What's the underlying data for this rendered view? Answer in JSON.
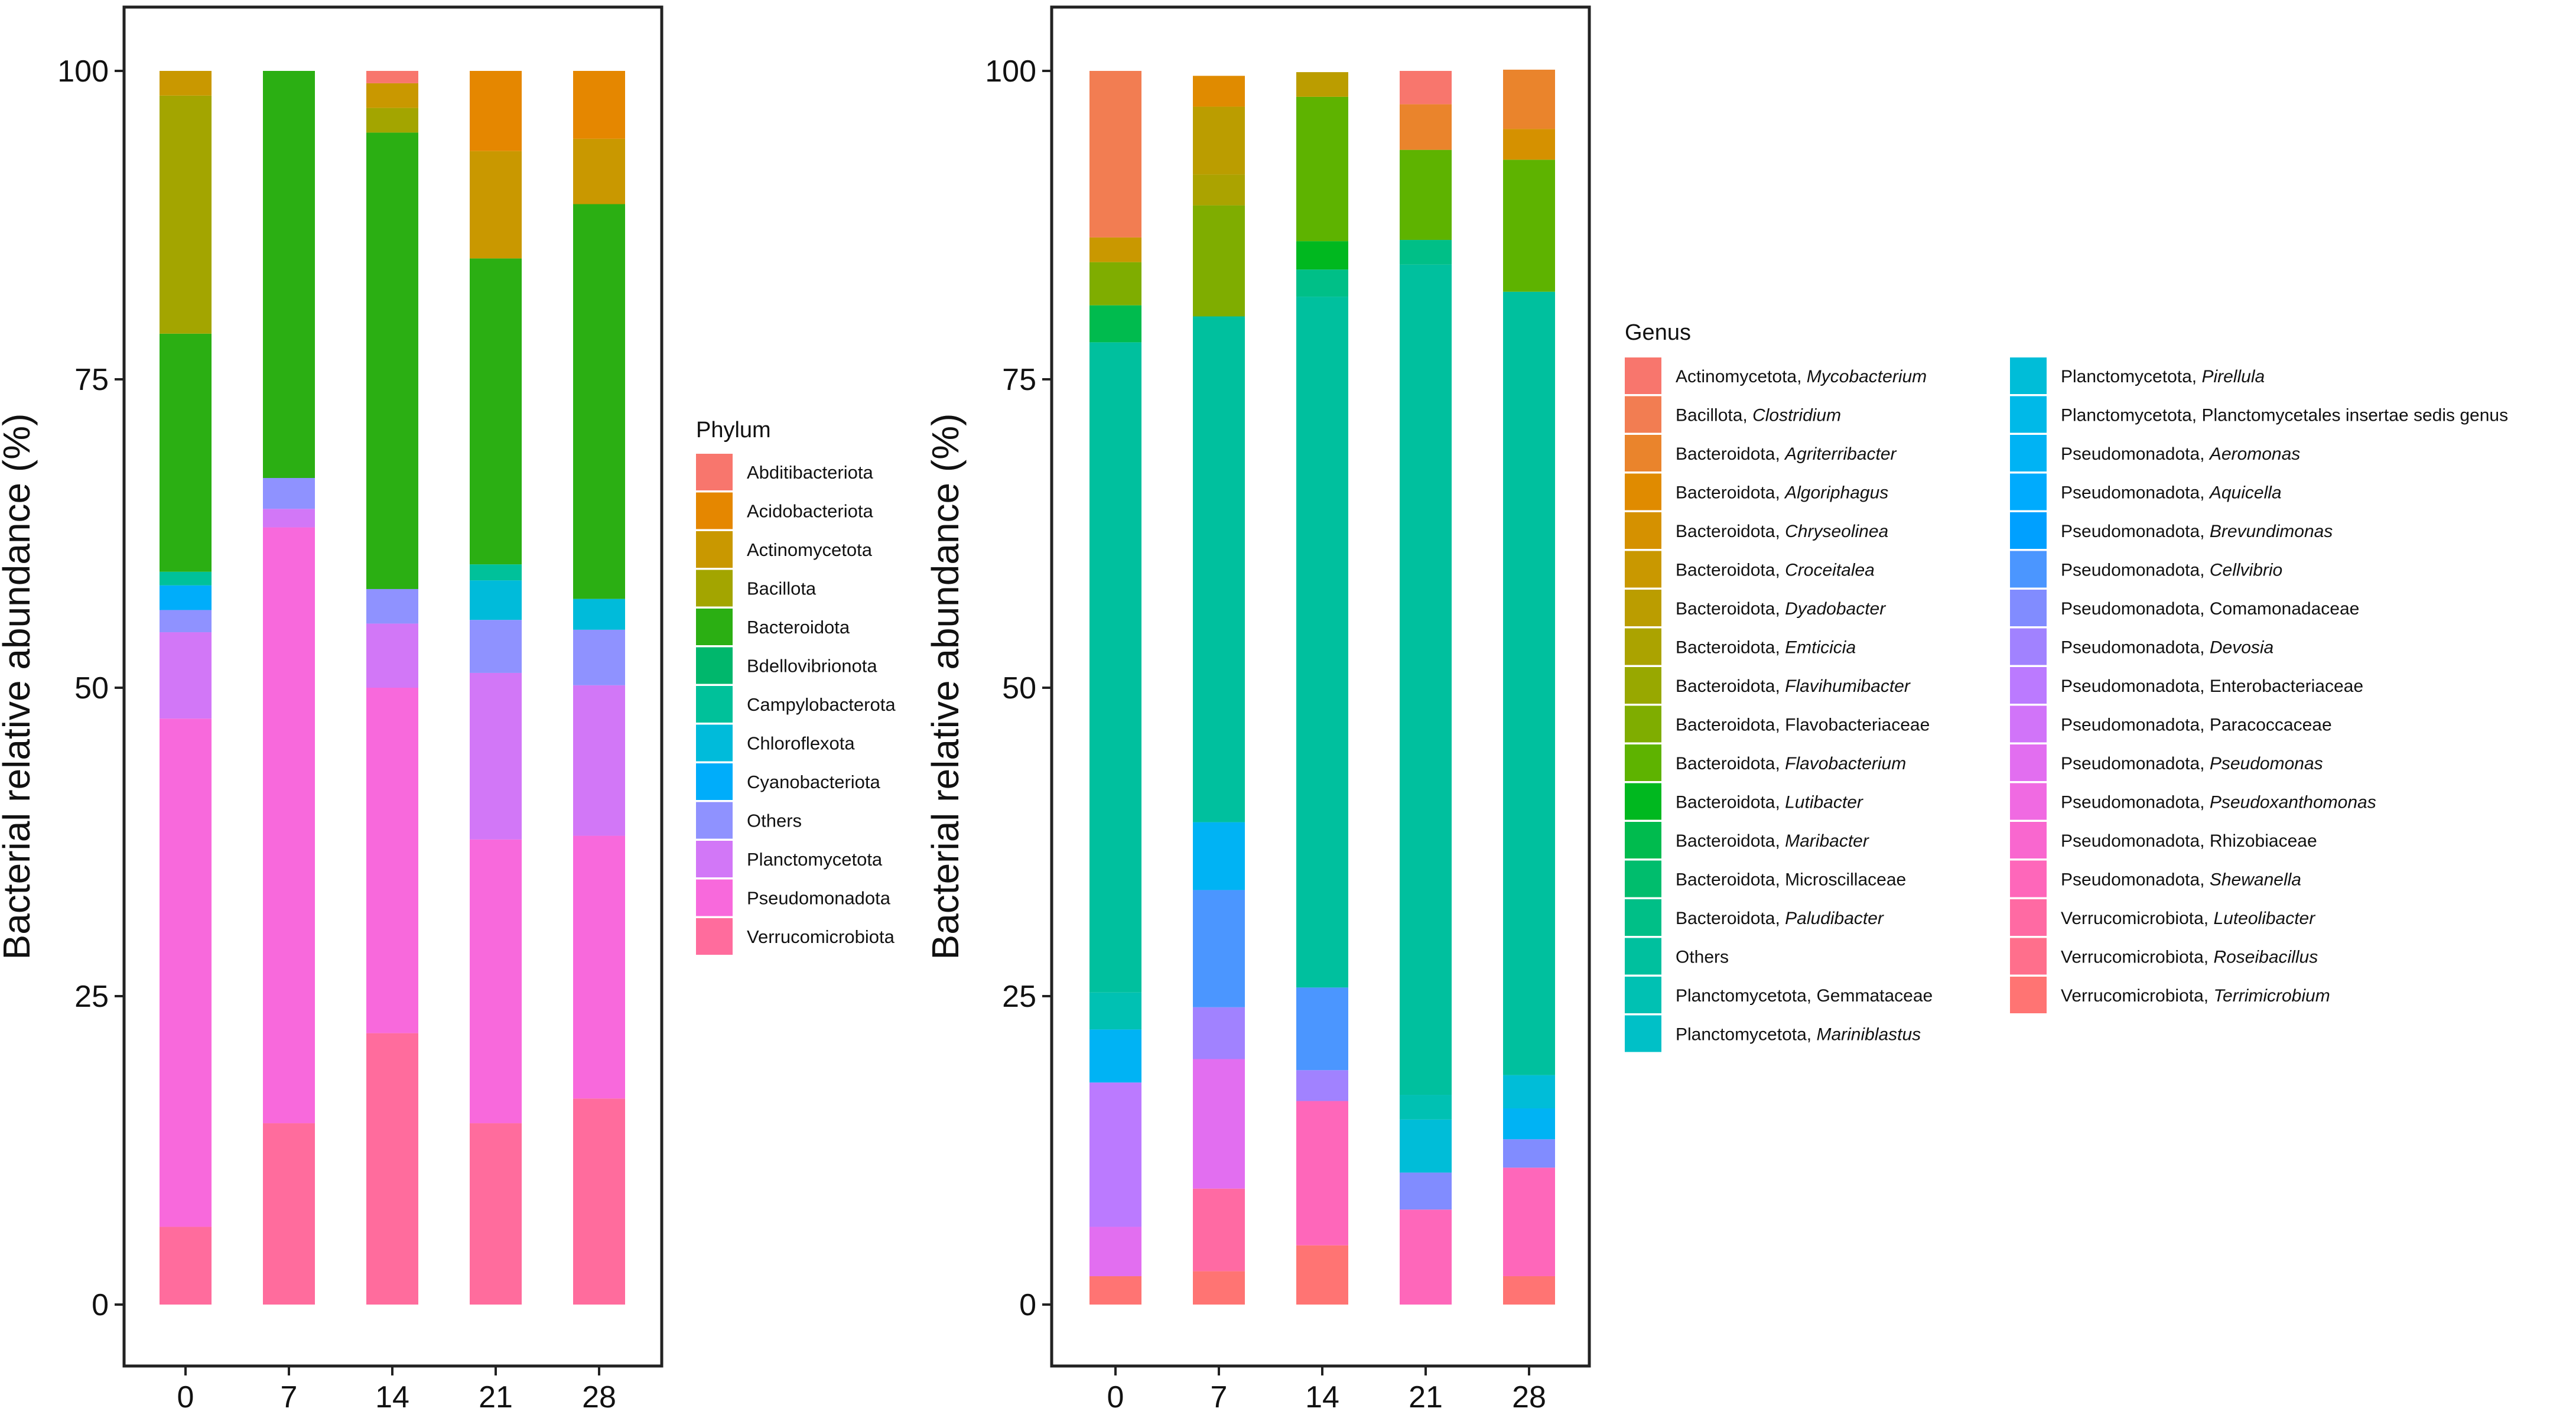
{
  "chart_data": [
    {
      "type": "stacked-bar",
      "ylabel": "Bacterial relative abundance (%)",
      "xlabel": "",
      "categories": [
        "0",
        "7",
        "14",
        "21",
        "28"
      ],
      "y_ticks": [
        "0",
        "25",
        "50",
        "75",
        "100"
      ],
      "ylim": [
        0,
        100
      ],
      "legend_title": "Phylum",
      "legend": [
        {
          "label": "Abditibacteriota",
          "color": "#F8766D"
        },
        {
          "label": "Acidobacteriota",
          "color": "#E58700"
        },
        {
          "label": "Actinomycetota",
          "color": "#C99800"
        },
        {
          "label": "Bacillota",
          "color": "#A3A500"
        },
        {
          "label": "Bacteroidota",
          "color": "#2BAF13"
        },
        {
          "label": "Bdellovibrionota",
          "color": "#00B76C"
        },
        {
          "label": "Campylobacterota",
          "color": "#00C19A"
        },
        {
          "label": "Chloroflexota",
          "color": "#00BBDA"
        },
        {
          "label": "Cyanobacteriota",
          "color": "#00ADFA"
        },
        {
          "label": "Others",
          "color": "#8F92FF"
        },
        {
          "label": "Planctomycetota",
          "color": "#D277F7"
        },
        {
          "label": "Pseudomonadota",
          "color": "#F869DC"
        },
        {
          "label": "Verrucomicrobiota",
          "color": "#FF6C9D"
        }
      ],
      "series": [
        {
          "name": "Verrucomicrobiota",
          "color": "#FF6C9D",
          "values": [
            6.3,
            14.7,
            22.0,
            14.7,
            16.7
          ]
        },
        {
          "name": "Pseudomonadota",
          "color": "#F869DC",
          "values": [
            41.2,
            48.3,
            28.0,
            23.0,
            21.3
          ]
        },
        {
          "name": "Planctomycetota",
          "color": "#D277F7",
          "values": [
            7.0,
            1.5,
            5.2,
            13.5,
            12.2
          ]
        },
        {
          "name": "Others",
          "color": "#8F92FF",
          "values": [
            1.8,
            2.5,
            2.8,
            4.3,
            4.5
          ]
        },
        {
          "name": "Cyanobacteriota",
          "color": "#00ADFA",
          "values": [
            2.0,
            0,
            0,
            0,
            0
          ]
        },
        {
          "name": "Chloroflexota",
          "color": "#00BBDA",
          "values": [
            0,
            0,
            0,
            3.2,
            2.5
          ]
        },
        {
          "name": "Campylobacterota",
          "color": "#00C19A",
          "values": [
            1.1,
            0,
            0,
            1.3,
            0
          ]
        },
        {
          "name": "Bdellovibrionota",
          "color": "#00B76C",
          "values": [
            0,
            0,
            0,
            0,
            0
          ]
        },
        {
          "name": "Bacteroidota",
          "color": "#2BAF13",
          "values": [
            19.3,
            33.0,
            37.0,
            24.8,
            32.0
          ]
        },
        {
          "name": "Bacillota",
          "color": "#A3A500",
          "values": [
            19.3,
            0,
            2.0,
            0,
            0
          ]
        },
        {
          "name": "Actinomycetota",
          "color": "#C99800",
          "values": [
            2.0,
            0,
            2.0,
            8.7,
            5.3
          ]
        },
        {
          "name": "Acidobacteriota",
          "color": "#E58700",
          "values": [
            0,
            0,
            0,
            6.5,
            5.5
          ]
        },
        {
          "name": "Abditibacteriota",
          "color": "#F8766D",
          "values": [
            0,
            0,
            1.0,
            0,
            0
          ]
        }
      ]
    },
    {
      "type": "stacked-bar",
      "ylabel": "Bacterial relative abundance (%)",
      "xlabel": "",
      "categories": [
        "0",
        "7",
        "14",
        "21",
        "28"
      ],
      "y_ticks": [
        "0",
        "25",
        "50",
        "75",
        "100"
      ],
      "ylim": [
        0,
        100
      ],
      "legend_title": "Genus",
      "legend": [
        {
          "phylum": "Actinomycetota,",
          "genus": "Mycobacterium",
          "italic": true,
          "color": "#F8766D"
        },
        {
          "phylum": "Bacillota,",
          "genus": "Clostridium",
          "italic": true,
          "color": "#F27D52"
        },
        {
          "phylum": "Bacteroidota,",
          "genus": "Agriterribacter",
          "italic": true,
          "color": "#EA842C"
        },
        {
          "phylum": "Bacteroidota,",
          "genus": "Algoriphagus",
          "italic": true,
          "color": "#E08B00"
        },
        {
          "phylum": "Bacteroidota,",
          "genus": "Chryseolinea",
          "italic": true,
          "color": "#D59100"
        },
        {
          "phylum": "Bacteroidota,",
          "genus": "Croceitalea",
          "italic": true,
          "color": "#C99800"
        },
        {
          "phylum": "Bacteroidota,",
          "genus": "Dyadobacter",
          "italic": true,
          "color": "#BB9D00"
        },
        {
          "phylum": "Bacteroidota,",
          "genus": "Emticicia",
          "italic": true,
          "color": "#ABA300"
        },
        {
          "phylum": "Bacteroidota,",
          "genus": "Flavihumibacter",
          "italic": true,
          "color": "#98A800"
        },
        {
          "phylum": "Bacteroidota,",
          "genus": "Flavobacteriaceae",
          "italic": false,
          "color": "#7FAD00"
        },
        {
          "phylum": "Bacteroidota,",
          "genus": "Flavobacterium",
          "italic": true,
          "color": "#5EB300"
        },
        {
          "phylum": "Bacteroidota,",
          "genus": "Lutibacter",
          "italic": true,
          "color": "#00B81F"
        },
        {
          "phylum": "Bacteroidota,",
          "genus": "Maribacter",
          "italic": true,
          "color": "#00BB4E"
        },
        {
          "phylum": "Bacteroidota,",
          "genus": "Microscillaceae",
          "italic": false,
          "color": "#00BD6D"
        },
        {
          "phylum": "Bacteroidota,",
          "genus": "Paludibacter",
          "italic": true,
          "color": "#00BF87"
        },
        {
          "phylum": "",
          "genus": "Others",
          "italic": false,
          "color": "#00C09E"
        },
        {
          "phylum": "Planctomycetota,",
          "genus": "Gemmataceae",
          "italic": false,
          "color": "#00C1B3"
        },
        {
          "phylum": "Planctomycetota,",
          "genus": "Mariniblastus",
          "italic": true,
          "color": "#00C0C7"
        },
        {
          "phylum": "Planctomycetota,",
          "genus": "Pirellula",
          "italic": true,
          "color": "#00BDD8"
        },
        {
          "phylum": "Planctomycetota,",
          "genus": "Planctomycetales insertae sedis genus",
          "italic": false,
          "color": "#00B9E8"
        },
        {
          "phylum": "Pseudomonadota,",
          "genus": "Aeromonas",
          "italic": true,
          "color": "#00B3F4"
        },
        {
          "phylum": "Pseudomonadota,",
          "genus": "Aquicella",
          "italic": true,
          "color": "#00ABFD"
        },
        {
          "phylum": "Pseudomonadota,",
          "genus": "Brevundimonas",
          "italic": true,
          "color": "#00A0FF"
        },
        {
          "phylum": "Pseudomonadota,",
          "genus": "Cellvibrio",
          "italic": true,
          "color": "#4B96FF"
        },
        {
          "phylum": "Pseudomonadota,",
          "genus": "Comamonadaceae",
          "italic": false,
          "color": "#818CFF"
        },
        {
          "phylum": "Pseudomonadota,",
          "genus": "Devosia",
          "italic": true,
          "color": "#A182FF"
        },
        {
          "phylum": "Pseudomonadota,",
          "genus": "Enterobacteriaceae",
          "italic": false,
          "color": "#BB7AFF"
        },
        {
          "phylum": "Pseudomonadota,",
          "genus": "Paracoccaceae",
          "italic": false,
          "color": "#D174F9"
        },
        {
          "phylum": "Pseudomonadota,",
          "genus": "Pseudomonas",
          "italic": true,
          "color": "#E26EF0"
        },
        {
          "phylum": "Pseudomonadota,",
          "genus": "Pseudoxanthomonas",
          "italic": true,
          "color": "#F06AE2"
        },
        {
          "phylum": "Pseudomonadota,",
          "genus": "Rhizobiaceae",
          "italic": false,
          "color": "#F967CF"
        },
        {
          "phylum": "Pseudomonadota,",
          "genus": "Shewanella",
          "italic": true,
          "color": "#FE67BA"
        },
        {
          "phylum": "Verrucomicrobiota,",
          "genus": "Luteolibacter",
          "italic": true,
          "color": "#FF6AA3"
        },
        {
          "phylum": "Verrucomicrobiota,",
          "genus": "Roseibacillus",
          "italic": true,
          "color": "#FF6F8C"
        },
        {
          "phylum": "Verrucomicrobiota,",
          "genus": "Terrimicrobium",
          "italic": true,
          "color": "#FF7473"
        }
      ],
      "series": [
        {
          "name": "Verrucomicrobiota, Terrimicrobium",
          "color": "#FF7473",
          "values": [
            2.3,
            2.7,
            4.8,
            0,
            2.3
          ]
        },
        {
          "name": "Verrucomicrobiota, Luteolibacter",
          "color": "#FF6AA3",
          "values": [
            0,
            6.7,
            0,
            0,
            0
          ]
        },
        {
          "name": "Pseudomonadota, Shewanella",
          "color": "#FE67BA",
          "values": [
            0,
            0,
            11.7,
            7.7,
            8.8
          ]
        },
        {
          "name": "Pseudomonadota, Pseudomonas",
          "color": "#E26EF0",
          "values": [
            4.0,
            10.5,
            0,
            0,
            0
          ]
        },
        {
          "name": "Pseudomonadota, Enterobacteriaceae",
          "color": "#BB7AFF",
          "values": [
            11.7,
            0,
            0,
            0,
            0
          ]
        },
        {
          "name": "Pseudomonadota, Devosia",
          "color": "#A182FF",
          "values": [
            0,
            4.2,
            2.5,
            0,
            0
          ]
        },
        {
          "name": "Pseudomonadota, Comamonadaceae",
          "color": "#818CFF",
          "values": [
            0,
            0,
            0,
            3.0,
            2.3
          ]
        },
        {
          "name": "Pseudomonadota, Cellvibrio",
          "color": "#4B96FF",
          "values": [
            0,
            9.5,
            6.7,
            0,
            0
          ]
        },
        {
          "name": "Pseudomonadota, Aeromonas",
          "color": "#00B3F4",
          "values": [
            4.3,
            5.5,
            0,
            0,
            2.5
          ]
        },
        {
          "name": "Planctomycetota, Pirellula",
          "color": "#00BDD8",
          "values": [
            0,
            0,
            0,
            4.3,
            2.7
          ]
        },
        {
          "name": "Planctomycetota, Gemmataceae",
          "color": "#00C1B3",
          "values": [
            3.0,
            0,
            0,
            2.0,
            0
          ]
        },
        {
          "name": "Others",
          "color": "#00C09E",
          "values": [
            52.7,
            41.0,
            56.0,
            67.3,
            63.5
          ]
        },
        {
          "name": "Bacteroidota, Paludibacter",
          "color": "#00BF87",
          "values": [
            0,
            0,
            2.2,
            2.0,
            0
          ]
        },
        {
          "name": "Bacteroidota, Maribacter",
          "color": "#00BB4E",
          "values": [
            3.0,
            0,
            0,
            0,
            0
          ]
        },
        {
          "name": "Bacteroidota, Lutibacter",
          "color": "#00B81F",
          "values": [
            0,
            0,
            2.3,
            0,
            0
          ]
        },
        {
          "name": "Bacteroidota, Flavobacterium",
          "color": "#5EB300",
          "values": [
            0,
            0,
            11.7,
            7.3,
            10.7
          ]
        },
        {
          "name": "Bacteroidota, Flavobacteriaceae",
          "color": "#7FAD00",
          "values": [
            3.5,
            9.0,
            0,
            0,
            0
          ]
        },
        {
          "name": "Bacteroidota, Emticicia",
          "color": "#ABA300",
          "values": [
            0,
            2.5,
            0,
            0,
            0
          ]
        },
        {
          "name": "Bacteroidota, Dyadobacter",
          "color": "#BB9D00",
          "values": [
            0,
            5.5,
            2.0,
            0,
            0
          ]
        },
        {
          "name": "Bacteroidota, Croceitalea",
          "color": "#C99800",
          "values": [
            2.0,
            0,
            0,
            0,
            0
          ]
        },
        {
          "name": "Bacteroidota, Chryseolinea",
          "color": "#D59100",
          "values": [
            0,
            0,
            0,
            0,
            2.5
          ]
        },
        {
          "name": "Bacteroidota, Algoriphagus",
          "color": "#E08B00",
          "values": [
            0,
            2.5,
            0,
            0,
            0
          ]
        },
        {
          "name": "Bacteroidota, Agriterribacter",
          "color": "#EA842C",
          "values": [
            0,
            0,
            0,
            3.7,
            4.8
          ]
        },
        {
          "name": "Bacillota, Clostridium",
          "color": "#F27D52",
          "values": [
            13.5,
            0,
            0,
            0,
            0
          ]
        },
        {
          "name": "Actinomycetota, Mycobacterium",
          "color": "#F8766D",
          "values": [
            0,
            0,
            0,
            2.7,
            0
          ]
        }
      ]
    }
  ]
}
